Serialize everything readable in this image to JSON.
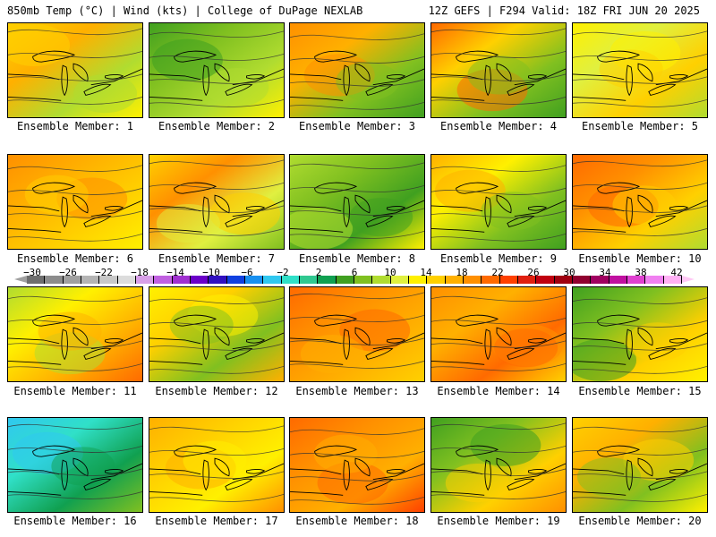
{
  "header": {
    "title": "850mb Temp (°C) | Wind (kts) | College of DuPage NEXLAB",
    "run_info": "12Z GEFS | F294 Valid: 18Z FRI JUN 20 2025"
  },
  "members": [
    {
      "label": "Ensemble Member: 1"
    },
    {
      "label": "Ensemble Member: 2"
    },
    {
      "label": "Ensemble Member: 3"
    },
    {
      "label": "Ensemble Member: 4"
    },
    {
      "label": "Ensemble Member: 5"
    },
    {
      "label": "Ensemble Member: 6"
    },
    {
      "label": "Ensemble Member: 7"
    },
    {
      "label": "Ensemble Member: 8"
    },
    {
      "label": "Ensemble Member: 9"
    },
    {
      "label": "Ensemble Member: 10"
    },
    {
      "label": "Ensemble Member: 11"
    },
    {
      "label": "Ensemble Member: 12"
    },
    {
      "label": "Ensemble Member: 13"
    },
    {
      "label": "Ensemble Member: 14"
    },
    {
      "label": "Ensemble Member: 15"
    },
    {
      "label": "Ensemble Member: 16"
    },
    {
      "label": "Ensemble Member: 17"
    },
    {
      "label": "Ensemble Member: 18"
    },
    {
      "label": "Ensemble Member: 19"
    },
    {
      "label": "Ensemble Member: 20"
    }
  ],
  "colorbar": {
    "ticks": [
      "−30",
      "−26",
      "−22",
      "−18",
      "−14",
      "−10",
      "−6",
      "−2",
      "2",
      "6",
      "10",
      "14",
      "18",
      "22",
      "26",
      "30",
      "34",
      "38",
      "42"
    ],
    "colors": [
      "#6e6e6e",
      "#8c8c8c",
      "#a0a0a0",
      "#b4b4b4",
      "#c8c8c8",
      "#dcdcdc",
      "#d8a0e8",
      "#c060e0",
      "#a030d0",
      "#6a00c8",
      "#3010c0",
      "#1040e0",
      "#1890f0",
      "#30c8f0",
      "#30e0c8",
      "#30c890",
      "#10a050",
      "#40a020",
      "#80c020",
      "#b0dc30",
      "#e0f040",
      "#fff000",
      "#ffd000",
      "#ffb000",
      "#ff9000",
      "#ff6a00",
      "#ff4000",
      "#e02010",
      "#c00010",
      "#a00010",
      "#900030",
      "#a00060",
      "#c010a0",
      "#e040d0",
      "#f080f0",
      "#ffb0f5"
    ]
  }
}
